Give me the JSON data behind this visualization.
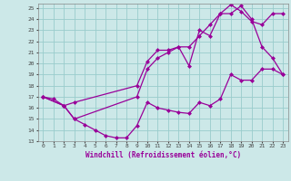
{
  "bg_color": "#cce8e8",
  "line_color": "#990099",
  "grid_color": "#99cccc",
  "xlabel": "Windchill (Refroidissement éolien,°C)",
  "xlim": [
    -0.5,
    23.5
  ],
  "ylim": [
    13,
    25.4
  ],
  "yticks": [
    13,
    14,
    15,
    16,
    17,
    18,
    19,
    20,
    21,
    22,
    23,
    24,
    25
  ],
  "xticks": [
    0,
    1,
    2,
    3,
    4,
    5,
    6,
    7,
    8,
    9,
    10,
    11,
    12,
    13,
    14,
    15,
    16,
    17,
    18,
    19,
    20,
    21,
    22,
    23
  ],
  "line1_x": [
    0,
    1,
    2,
    3,
    4,
    5,
    6,
    7,
    8,
    9,
    10,
    11,
    12,
    13,
    14,
    15,
    16,
    17,
    18,
    19,
    20,
    21,
    22,
    23
  ],
  "line1_y": [
    17.0,
    16.8,
    16.2,
    15.0,
    14.5,
    14.0,
    13.5,
    13.3,
    13.3,
    14.4,
    16.5,
    16.0,
    15.8,
    15.6,
    15.5,
    16.5,
    16.2,
    16.8,
    19.0,
    18.5,
    18.5,
    19.5,
    19.5,
    19.0
  ],
  "line2_x": [
    0,
    2,
    3,
    9,
    10,
    11,
    12,
    13,
    14,
    15,
    16,
    17,
    18,
    19,
    20,
    21,
    22,
    23
  ],
  "line2_y": [
    17.0,
    16.2,
    16.5,
    18.0,
    20.2,
    21.2,
    21.2,
    21.5,
    19.8,
    23.0,
    22.5,
    24.5,
    24.5,
    25.2,
    24.0,
    21.5,
    20.5,
    19.0
  ],
  "line3_x": [
    0,
    2,
    3,
    9,
    10,
    11,
    12,
    13,
    14,
    15,
    16,
    17,
    18,
    19,
    20,
    21,
    22,
    23
  ],
  "line3_y": [
    17.0,
    16.2,
    15.0,
    17.0,
    19.5,
    20.5,
    21.0,
    21.5,
    21.5,
    22.5,
    23.5,
    24.5,
    25.3,
    24.7,
    23.8,
    23.5,
    24.5,
    24.5
  ]
}
